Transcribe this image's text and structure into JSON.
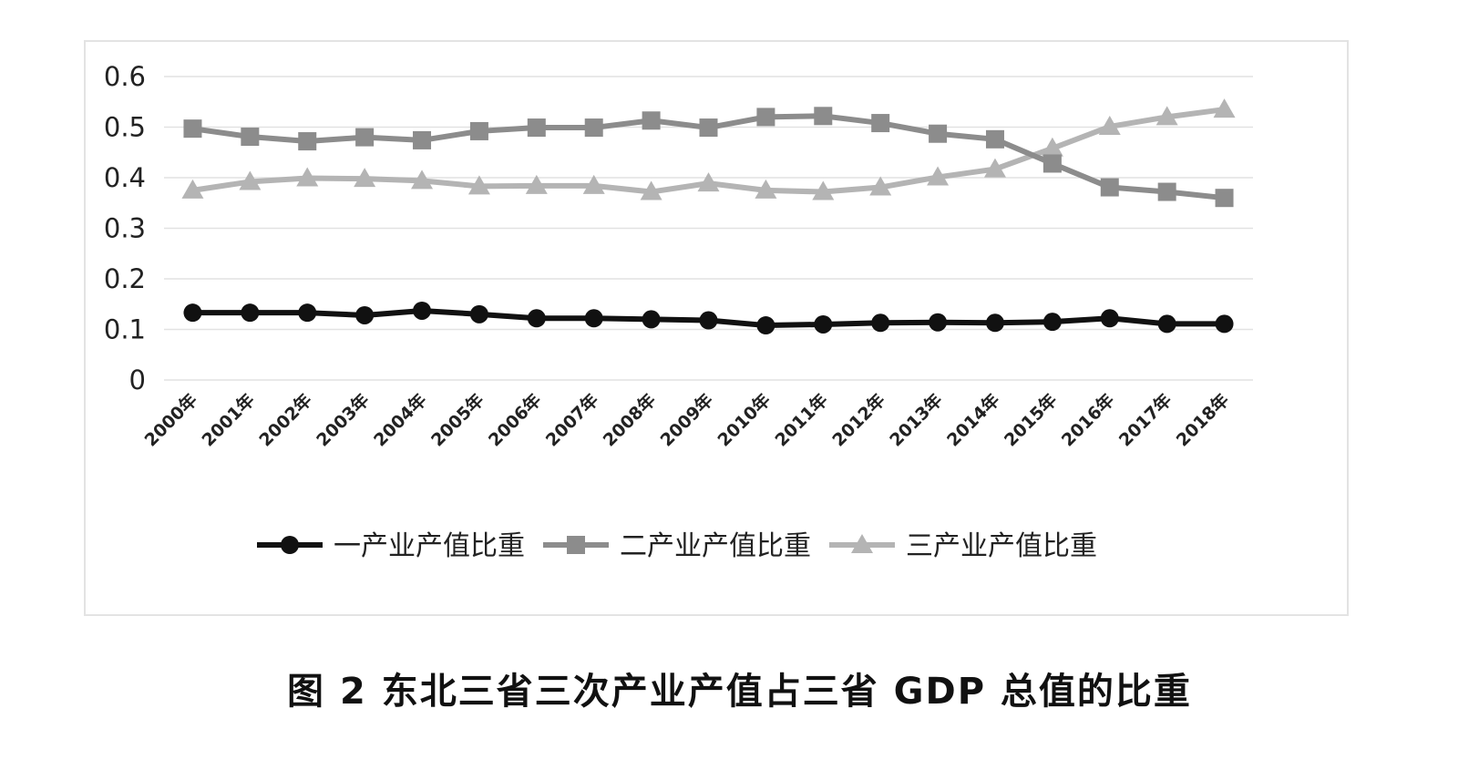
{
  "caption": "图 2  东北三省三次产业产值占三省 GDP 总值的比重",
  "chart_data": {
    "type": "line",
    "categories": [
      "2000年",
      "2001年",
      "2002年",
      "2003年",
      "2004年",
      "2005年",
      "2006年",
      "2007年",
      "2008年",
      "2009年",
      "2010年",
      "2011年",
      "2012年",
      "2013年",
      "2014年",
      "2015年",
      "2016年",
      "2017年",
      "2018年"
    ],
    "ylim": [
      0,
      0.6
    ],
    "yticks": [
      "0",
      "0.1",
      "0.2",
      "0.3",
      "0.4",
      "0.5",
      "0.6"
    ],
    "grid": true,
    "legend_position": "bottom",
    "series": [
      {
        "name": "一产业产值比重",
        "color": "#111111",
        "marker": "circle",
        "values": [
          0.133,
          0.133,
          0.133,
          0.128,
          0.137,
          0.13,
          0.122,
          0.122,
          0.12,
          0.118,
          0.108,
          0.11,
          0.113,
          0.114,
          0.113,
          0.115,
          0.122,
          0.111,
          0.111
        ]
      },
      {
        "name": "二产业产值比重",
        "color": "#8c8c8c",
        "marker": "square",
        "values": [
          0.497,
          0.481,
          0.472,
          0.48,
          0.474,
          0.492,
          0.499,
          0.499,
          0.513,
          0.499,
          0.52,
          0.522,
          0.508,
          0.487,
          0.476,
          0.428,
          0.381,
          0.372,
          0.36
        ]
      },
      {
        "name": "三产业产值比重",
        "color": "#b4b4b4",
        "marker": "triangle",
        "values": [
          0.375,
          0.392,
          0.399,
          0.398,
          0.394,
          0.383,
          0.384,
          0.384,
          0.372,
          0.389,
          0.375,
          0.372,
          0.381,
          0.401,
          0.417,
          0.458,
          0.501,
          0.52,
          0.535
        ]
      }
    ]
  }
}
